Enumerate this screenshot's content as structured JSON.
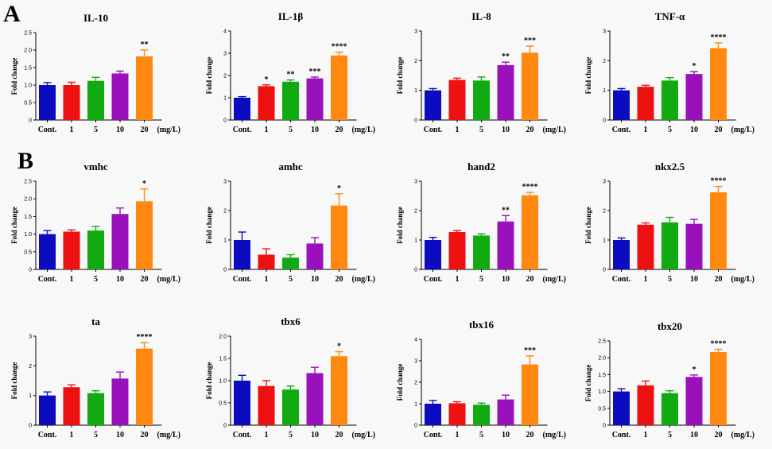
{
  "figure": {
    "panel_labels": [
      "A",
      "B"
    ]
  },
  "chart_data": [
    {
      "id": "IL-10",
      "panel": "A",
      "type": "bar",
      "title": "IL-10",
      "ylabel": "Fold change",
      "ylim": [
        0,
        2.5
      ],
      "yticks": [
        0,
        0.5,
        1.0,
        1.5,
        2.0,
        2.5
      ],
      "categories": [
        "Cont.",
        "1",
        "5",
        "10",
        "20"
      ],
      "unit": "(mg/L)",
      "values": [
        1.0,
        1.0,
        1.12,
        1.33,
        1.82
      ],
      "errors": [
        0.07,
        0.08,
        0.1,
        0.07,
        0.18
      ],
      "sig": [
        "",
        "",
        "",
        "",
        "**"
      ],
      "colors": [
        "#0b0bbf",
        "#ee1111",
        "#11aa11",
        "#9911bb",
        "#ff8811"
      ]
    },
    {
      "id": "IL-1b",
      "panel": "A",
      "type": "bar",
      "title": "IL-1β",
      "ylabel": "Fold change",
      "ylim": [
        0,
        4
      ],
      "yticks": [
        0,
        1,
        2,
        3,
        4
      ],
      "categories": [
        "Cont.",
        "1",
        "5",
        "10",
        "20"
      ],
      "unit": "(mg/L)",
      "values": [
        1.0,
        1.52,
        1.72,
        1.87,
        2.9
      ],
      "errors": [
        0.05,
        0.06,
        0.08,
        0.06,
        0.15
      ],
      "sig": [
        "",
        "*",
        "**",
        "***",
        "****"
      ],
      "colors": [
        "#0b0bbf",
        "#ee1111",
        "#11aa11",
        "#9911bb",
        "#ff8811"
      ]
    },
    {
      "id": "IL-8",
      "panel": "A",
      "type": "bar",
      "title": "IL-8",
      "ylabel": "Fold change",
      "ylim": [
        0,
        3
      ],
      "yticks": [
        0,
        1,
        2,
        3
      ],
      "categories": [
        "Cont.",
        "1",
        "5",
        "10",
        "20"
      ],
      "unit": "(mg/L)",
      "values": [
        1.0,
        1.35,
        1.33,
        1.85,
        2.27
      ],
      "errors": [
        0.06,
        0.06,
        0.12,
        0.1,
        0.22
      ],
      "sig": [
        "",
        "",
        "",
        "**",
        "***"
      ],
      "colors": [
        "#0b0bbf",
        "#ee1111",
        "#11aa11",
        "#9911bb",
        "#ff8811"
      ]
    },
    {
      "id": "TNF-a",
      "panel": "A",
      "type": "bar",
      "title": "TNF-α",
      "ylabel": "Fold change",
      "ylim": [
        0,
        3
      ],
      "yticks": [
        0,
        1,
        2,
        3
      ],
      "categories": [
        "Cont.",
        "1",
        "5",
        "10",
        "20"
      ],
      "unit": "(mg/L)",
      "values": [
        1.0,
        1.12,
        1.33,
        1.55,
        2.42
      ],
      "errors": [
        0.06,
        0.05,
        0.1,
        0.08,
        0.18
      ],
      "sig": [
        "",
        "",
        "",
        "*",
        "****"
      ],
      "colors": [
        "#0b0bbf",
        "#ee1111",
        "#11aa11",
        "#9911bb",
        "#ff8811"
      ]
    },
    {
      "id": "vmhc",
      "panel": "B",
      "type": "bar",
      "title": "vmhc",
      "ylabel": "Fold change",
      "ylim": [
        0,
        2.5
      ],
      "yticks": [
        0,
        0.5,
        1.0,
        1.5,
        2.0,
        2.5
      ],
      "categories": [
        "Cont.",
        "1",
        "5",
        "10",
        "20"
      ],
      "unit": "(mg/L)",
      "values": [
        1.0,
        1.07,
        1.1,
        1.57,
        1.93
      ],
      "errors": [
        0.1,
        0.05,
        0.12,
        0.17,
        0.35
      ],
      "sig": [
        "",
        "",
        "",
        "",
        "*"
      ],
      "colors": [
        "#0b0bbf",
        "#ee1111",
        "#11aa11",
        "#9911bb",
        "#ff8811"
      ]
    },
    {
      "id": "amhc",
      "panel": "B",
      "type": "bar",
      "title": "amhc",
      "ylabel": "Fold change",
      "ylim": [
        0,
        3
      ],
      "yticks": [
        0,
        1,
        2,
        3
      ],
      "categories": [
        "Cont.",
        "1",
        "5",
        "10",
        "20"
      ],
      "unit": "(mg/L)",
      "values": [
        1.0,
        0.5,
        0.4,
        0.88,
        2.17
      ],
      "errors": [
        0.27,
        0.2,
        0.1,
        0.2,
        0.4
      ],
      "sig": [
        "",
        "",
        "",
        "",
        "*"
      ],
      "colors": [
        "#0b0bbf",
        "#ee1111",
        "#11aa11",
        "#9911bb",
        "#ff8811"
      ]
    },
    {
      "id": "hand2",
      "panel": "B",
      "type": "bar",
      "title": "hand2",
      "ylabel": "Fold change",
      "ylim": [
        0,
        3
      ],
      "yticks": [
        0,
        1,
        2,
        3
      ],
      "categories": [
        "Cont.",
        "1",
        "5",
        "10",
        "20"
      ],
      "unit": "(mg/L)",
      "values": [
        1.0,
        1.27,
        1.15,
        1.63,
        2.52
      ],
      "errors": [
        0.09,
        0.05,
        0.06,
        0.2,
        0.1
      ],
      "sig": [
        "",
        "",
        "",
        "**",
        "****"
      ],
      "colors": [
        "#0b0bbf",
        "#ee1111",
        "#11aa11",
        "#9911bb",
        "#ff8811"
      ]
    },
    {
      "id": "nkx2.5",
      "panel": "B",
      "type": "bar",
      "title": "nkx2.5",
      "ylabel": "Fold change",
      "ylim": [
        0,
        3
      ],
      "yticks": [
        0,
        1,
        2,
        3
      ],
      "categories": [
        "Cont.",
        "1",
        "5",
        "10",
        "20"
      ],
      "unit": "(mg/L)",
      "values": [
        1.0,
        1.52,
        1.6,
        1.55,
        2.62
      ],
      "errors": [
        0.07,
        0.06,
        0.17,
        0.15,
        0.2
      ],
      "sig": [
        "",
        "",
        "",
        "",
        "****"
      ],
      "colors": [
        "#0b0bbf",
        "#ee1111",
        "#11aa11",
        "#9911bb",
        "#ff8811"
      ]
    },
    {
      "id": "ta",
      "panel": "B",
      "type": "bar",
      "title": "ta",
      "ylabel": "Fold change",
      "ylim": [
        0,
        3
      ],
      "yticks": [
        0,
        1,
        2,
        3
      ],
      "categories": [
        "Cont.",
        "1",
        "5",
        "10",
        "20"
      ],
      "unit": "(mg/L)",
      "values": [
        1.0,
        1.28,
        1.08,
        1.57,
        2.58
      ],
      "errors": [
        0.12,
        0.08,
        0.08,
        0.22,
        0.2
      ],
      "sig": [
        "",
        "",
        "",
        "",
        "****"
      ],
      "colors": [
        "#0b0bbf",
        "#ee1111",
        "#11aa11",
        "#9911bb",
        "#ff8811"
      ]
    },
    {
      "id": "tbx6",
      "panel": "B",
      "type": "bar",
      "title": "tbx6",
      "ylabel": "Fold change",
      "ylim": [
        0,
        2.0
      ],
      "yticks": [
        0,
        0.5,
        1.0,
        1.5,
        2.0
      ],
      "categories": [
        "Cont.",
        "1",
        "5",
        "10",
        "20"
      ],
      "unit": "(mg/L)",
      "values": [
        1.0,
        0.88,
        0.8,
        1.17,
        1.55
      ],
      "errors": [
        0.12,
        0.12,
        0.08,
        0.13,
        0.1
      ],
      "sig": [
        "",
        "",
        "",
        "",
        "*"
      ],
      "colors": [
        "#0b0bbf",
        "#ee1111",
        "#11aa11",
        "#9911bb",
        "#ff8811"
      ]
    },
    {
      "id": "tbx16",
      "panel": "B",
      "type": "bar",
      "title": "tbx16",
      "ylabel": "Fold change",
      "ylim": [
        0,
        4
      ],
      "yticks": [
        0,
        1,
        2,
        3,
        4
      ],
      "categories": [
        "Cont.",
        "1",
        "5",
        "10",
        "20"
      ],
      "unit": "(mg/L)",
      "values": [
        1.0,
        1.02,
        0.95,
        1.2,
        2.83
      ],
      "errors": [
        0.15,
        0.07,
        0.08,
        0.2,
        0.4
      ],
      "sig": [
        "",
        "",
        "",
        "",
        "***"
      ],
      "colors": [
        "#0b0bbf",
        "#ee1111",
        "#11aa11",
        "#9911bb",
        "#ff8811"
      ]
    },
    {
      "id": "tbx20",
      "panel": "B",
      "type": "bar",
      "title": "tbx20",
      "ylabel": "Fold change",
      "ylim": [
        0,
        2.5
      ],
      "yticks": [
        0,
        0.5,
        1.0,
        1.5,
        2.0,
        2.5
      ],
      "categories": [
        "Cont.",
        "1",
        "5",
        "10",
        "20"
      ],
      "unit": "(mg/L)",
      "values": [
        1.0,
        1.18,
        0.95,
        1.43,
        2.17
      ],
      "errors": [
        0.08,
        0.13,
        0.07,
        0.06,
        0.08
      ],
      "sig": [
        "",
        "",
        "",
        "*",
        "****"
      ],
      "colors": [
        "#0b0bbf",
        "#ee1111",
        "#11aa11",
        "#9911bb",
        "#ff8811"
      ]
    }
  ]
}
